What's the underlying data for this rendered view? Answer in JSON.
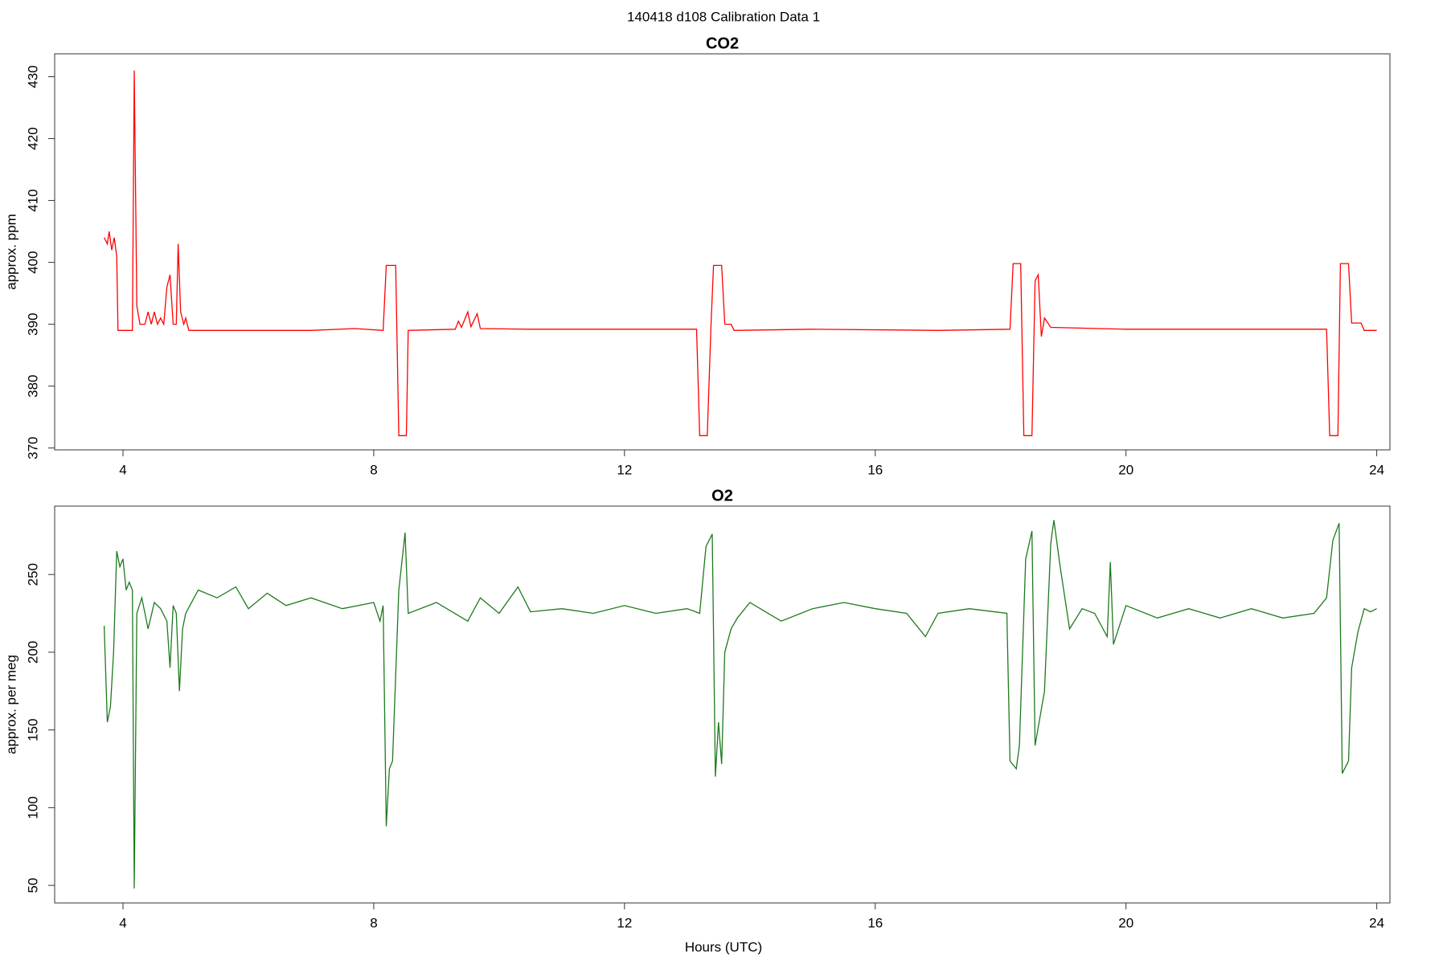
{
  "title": "140418   d108   Calibration Data 1",
  "x_label": "Hours (UTC)",
  "chart_data": [
    {
      "type": "line",
      "title": "CO2",
      "y_label": "approx. ppm",
      "xlim": [
        2.91,
        24.21
      ],
      "xticks": [
        4,
        8,
        12,
        16,
        20,
        24
      ],
      "ylim": [
        369.7,
        433.7
      ],
      "yticks": [
        370,
        380,
        390,
        400,
        410,
        420,
        430
      ],
      "series": [
        {
          "color": "#ff0000",
          "x": [
            3.7,
            3.75,
            3.78,
            3.82,
            3.86,
            3.9,
            3.92,
            4.15,
            4.18,
            4.22,
            4.27,
            4.35,
            4.4,
            4.45,
            4.5,
            4.55,
            4.6,
            4.65,
            4.7,
            4.75,
            4.8,
            4.85,
            4.88,
            4.92,
            4.97,
            5.0,
            5.05,
            6,
            7,
            7.7,
            8.15,
            8.2,
            8.35,
            8.4,
            8.52,
            8.55,
            9.3,
            9.35,
            9.4,
            9.5,
            9.55,
            9.65,
            9.7,
            10.5,
            12,
            13.15,
            13.2,
            13.32,
            13.38,
            13.42,
            13.55,
            13.6,
            13.7,
            13.75,
            15,
            17,
            18.15,
            18.2,
            18.32,
            18.37,
            18.5,
            18.55,
            18.6,
            18.65,
            18.7,
            18.8,
            20,
            22,
            23.2,
            23.25,
            23.38,
            23.42,
            23.55,
            23.6,
            23.75,
            23.8,
            24
          ],
          "values": [
            404,
            403,
            405,
            402,
            404,
            401,
            389,
            389,
            431,
            393,
            390,
            390,
            392,
            390,
            392,
            390,
            391,
            390,
            396,
            398,
            390,
            390,
            403,
            392,
            390,
            391,
            389,
            389,
            389,
            389.3,
            389,
            399.5,
            399.5,
            372,
            372,
            389,
            389.2,
            390.5,
            389.5,
            392,
            389.6,
            391.7,
            389.3,
            389.2,
            389.2,
            389.2,
            372,
            372,
            390,
            399.5,
            399.5,
            390,
            390,
            389,
            389.2,
            389,
            389.2,
            399.8,
            399.8,
            372,
            372,
            397,
            398,
            388,
            391,
            389.5,
            389.2,
            389.2,
            389.2,
            372,
            372,
            399.8,
            399.8,
            390.2,
            390.2,
            389,
            389
          ]
        }
      ]
    },
    {
      "type": "line",
      "title": "O2",
      "y_label": "approx. per meg",
      "xlim": [
        2.91,
        24.21
      ],
      "xticks": [
        4,
        8,
        12,
        16,
        20,
        24
      ],
      "ylim": [
        38.7,
        294
      ],
      "yticks": [
        50,
        100,
        150,
        200,
        250
      ],
      "series": [
        {
          "color": "#1e7a1e",
          "x": [
            3.7,
            3.75,
            3.8,
            3.85,
            3.9,
            3.95,
            4.0,
            4.05,
            4.1,
            4.15,
            4.18,
            4.22,
            4.3,
            4.4,
            4.5,
            4.6,
            4.7,
            4.75,
            4.8,
            4.85,
            4.9,
            4.95,
            5.0,
            5.2,
            5.5,
            5.8,
            6,
            6.3,
            6.6,
            7,
            7.5,
            8,
            8.1,
            8.15,
            8.2,
            8.25,
            8.3,
            8.4,
            8.5,
            8.55,
            9,
            9.5,
            9.7,
            10,
            10.3,
            10.5,
            11,
            11.5,
            12,
            12.5,
            13,
            13.2,
            13.3,
            13.4,
            13.45,
            13.5,
            13.55,
            13.6,
            13.7,
            13.8,
            14,
            14.5,
            15,
            15.5,
            16,
            16.5,
            16.8,
            17,
            17.5,
            18.1,
            18.15,
            18.25,
            18.3,
            18.4,
            18.5,
            18.55,
            18.7,
            18.8,
            18.85,
            18.95,
            19.1,
            19.3,
            19.5,
            19.7,
            19.75,
            19.8,
            20,
            20.5,
            21,
            21.5,
            22,
            22.5,
            23,
            23.2,
            23.3,
            23.4,
            23.45,
            23.55,
            23.6,
            23.7,
            23.8,
            23.9,
            24
          ],
          "values": [
            217,
            155,
            165,
            200,
            265,
            255,
            260,
            240,
            245,
            240,
            48,
            225,
            235,
            215,
            232,
            228,
            220,
            190,
            230,
            225,
            175,
            215,
            225,
            240,
            235,
            242,
            228,
            238,
            230,
            235,
            228,
            232,
            220,
            230,
            88,
            125,
            130,
            240,
            277,
            225,
            232,
            220,
            235,
            225,
            242,
            226,
            228,
            225,
            230,
            225,
            228,
            225,
            268,
            276,
            120,
            155,
            128,
            200,
            215,
            222,
            232,
            220,
            228,
            232,
            228,
            225,
            210,
            225,
            228,
            225,
            130,
            125,
            140,
            260,
            278,
            140,
            175,
            270,
            285,
            255,
            215,
            228,
            225,
            210,
            258,
            205,
            230,
            222,
            228,
            222,
            228,
            222,
            225,
            235,
            272,
            283,
            122,
            130,
            190,
            213,
            228,
            226,
            228
          ]
        }
      ]
    }
  ]
}
